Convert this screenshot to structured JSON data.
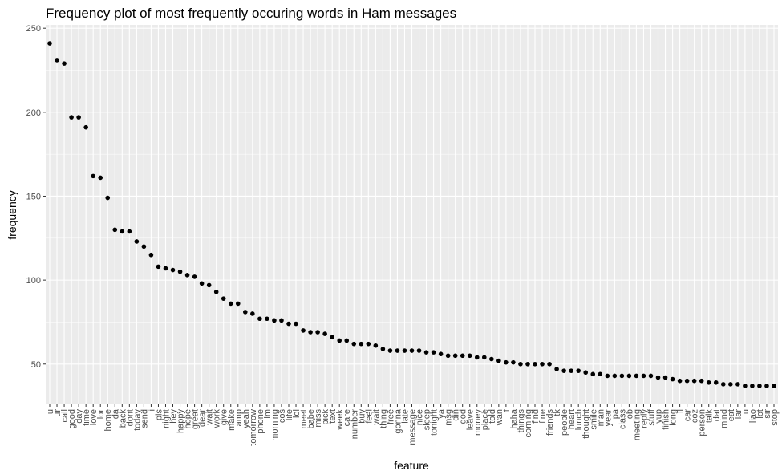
{
  "colors": {
    "panel": "#ebebeb",
    "grid_major": "#ffffff",
    "point": "#000000",
    "tick_text": "#4d4d4d",
    "tick_line": "#333333"
  },
  "chart_data": {
    "type": "scatter",
    "title": "Frequency plot of most frequently occuring words in Ham messages",
    "xlabel": "feature",
    "ylabel": "frequency",
    "ylim": [
      26,
      252
    ],
    "yticks": [
      50,
      100,
      150,
      200,
      250
    ],
    "grid": true,
    "legend": "none",
    "categories": [
      "u",
      "ur",
      "call",
      "good",
      "day",
      "time",
      "love",
      "lor",
      "home",
      "da",
      "back",
      "dont",
      "today",
      "send",
      "i",
      "pls",
      "night",
      "hey",
      "happy",
      "hope",
      "great",
      "dear",
      "wait",
      "work",
      "give",
      "make",
      "amp",
      "yeah",
      "tomorrow",
      "phone",
      "im",
      "morning",
      "cos",
      "life",
      "lol",
      "meet",
      "babe",
      "miss",
      "pick",
      "text",
      "week",
      "care",
      "number",
      "buy",
      "feel",
      "wait",
      "thing",
      "free",
      "gonna",
      "late",
      "message",
      "nice",
      "sleep",
      "tonight",
      "ya",
      "msg",
      "din",
      "god",
      "leave",
      "money",
      "place",
      "told",
      "wan",
      "t",
      "haha",
      "things",
      "coming",
      "find",
      "fine",
      "friends",
      "tk",
      "people",
      "heart",
      "lunch",
      "thought",
      "smile",
      "man",
      "year",
      "pa",
      "class",
      "job",
      "meeting",
      "reply",
      "stuff",
      "yup",
      "finish",
      "long",
      "ll",
      "car",
      "coz",
      "person",
      "talk",
      "dat",
      "mind",
      "eat",
      "lar",
      "u",
      "liao",
      "lot",
      "sir",
      "stop"
    ],
    "values": [
      241,
      231,
      229,
      197,
      197,
      191,
      162,
      161,
      149,
      130,
      129,
      129,
      123,
      120,
      115,
      108,
      107,
      106,
      105,
      103,
      102,
      98,
      97,
      93,
      89,
      86,
      86,
      81,
      80,
      77,
      77,
      76,
      76,
      74,
      74,
      70,
      69,
      69,
      68,
      66,
      64,
      64,
      62,
      62,
      62,
      61,
      59,
      58,
      58,
      58,
      58,
      58,
      57,
      57,
      56,
      55,
      55,
      55,
      55,
      54,
      54,
      53,
      52,
      51,
      51,
      50,
      50,
      50,
      50,
      50,
      47,
      46,
      46,
      46,
      45,
      44,
      44,
      43,
      43,
      43,
      43,
      43,
      43,
      43,
      42,
      42,
      41,
      40,
      40,
      40,
      40,
      39,
      39,
      38,
      38,
      38,
      37,
      37,
      37,
      37,
      37
    ]
  }
}
